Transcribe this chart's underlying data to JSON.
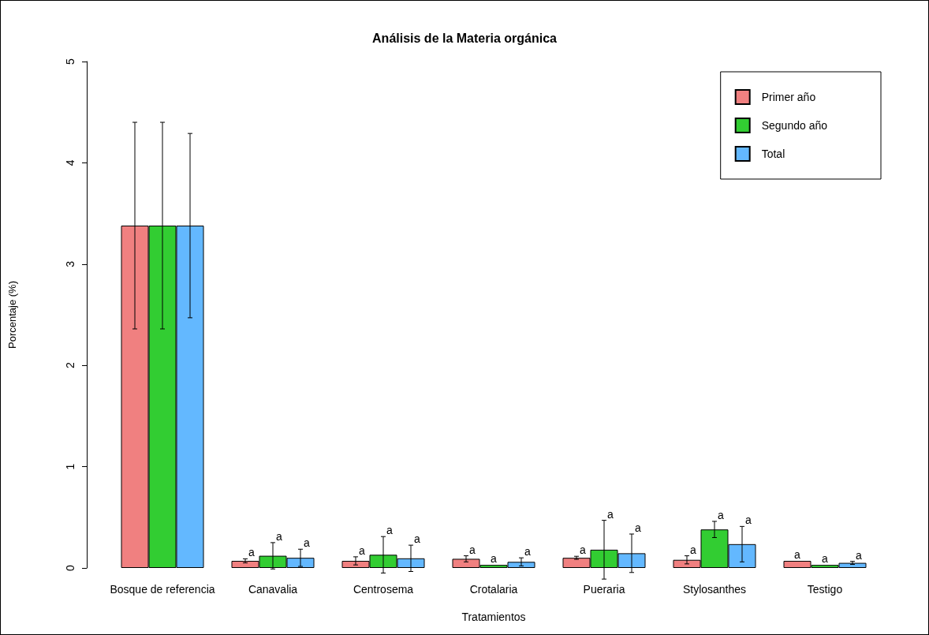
{
  "chart_data": {
    "type": "bar",
    "title": "Análisis de la Materia orgánica",
    "xlabel": "Tratamientos",
    "ylabel": "Porcentaje (%)",
    "categories": [
      "Bosque de referencia",
      "Canavalia",
      "Centrosema",
      "Crotalaria",
      "Pueraria",
      "Stylosanthes",
      "Testigo"
    ],
    "series": [
      {
        "name": "Primer año",
        "color": "#f08080",
        "values": [
          3.38,
          0.07,
          0.07,
          0.09,
          0.1,
          0.08,
          0.07
        ],
        "errors": [
          1.02,
          0.02,
          0.04,
          0.03,
          0.015,
          0.04,
          null
        ],
        "value_labels": [
          null,
          "a",
          "a",
          "a",
          "a",
          "a",
          "a"
        ]
      },
      {
        "name": "Segundo año",
        "color": "#32cd32",
        "values": [
          3.38,
          0.12,
          0.13,
          0.03,
          0.18,
          0.38,
          0.03
        ],
        "errors": [
          1.02,
          0.13,
          0.18,
          null,
          0.29,
          0.08,
          null
        ],
        "value_labels": [
          null,
          "a",
          "a",
          "a",
          "a",
          "a",
          "a"
        ]
      },
      {
        "name": "Total",
        "color": "#63b8ff",
        "values": [
          3.38,
          0.1,
          0.095,
          0.06,
          0.145,
          0.235,
          0.05
        ],
        "errors": [
          0.91,
          0.085,
          0.13,
          0.04,
          0.19,
          0.175,
          0.015
        ],
        "value_labels": [
          null,
          "a",
          "a",
          "a",
          "a",
          "a",
          "a"
        ]
      }
    ],
    "ylim": [
      0,
      5
    ],
    "yticks": [
      0,
      1,
      2,
      3,
      4,
      5
    ],
    "grid": false,
    "legend": "top right"
  }
}
